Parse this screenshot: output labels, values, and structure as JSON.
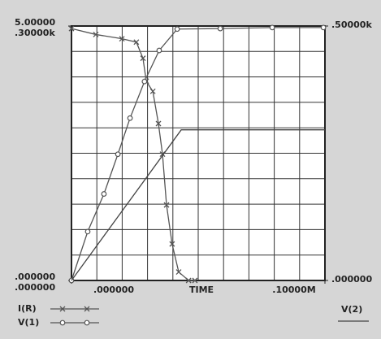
{
  "chart_data": {
    "type": "line",
    "xlabel": "TIME",
    "xlim": [
      0,
      0.1
    ],
    "xticks": [
      {
        "value": 0,
        "label": ".000000"
      },
      {
        "value": 0.1,
        "label": ".10000M"
      }
    ],
    "ylim": [
      0,
      5
    ],
    "yticks": [
      {
        "value": 0,
        "label": ".000000"
      },
      {
        "value": 5,
        "label": "5.00000"
      }
    ],
    "y3lim": [
      0,
      300
    ],
    "y3ticks": [
      {
        "value": 0,
        "label": ".000000"
      },
      {
        "value": 300,
        "label": ".30000k"
      }
    ],
    "y2lim": [
      0,
      500
    ],
    "y2ticks": [
      {
        "value": 0,
        "label": ".000000"
      },
      {
        "value": 500,
        "label": ".50000k"
      }
    ],
    "series": [
      {
        "name": "I(R)",
        "color": "#555555",
        "marker": "x",
        "axis": "y3",
        "x": [
          0,
          0.0096,
          0.0199,
          0.0256,
          0.0282,
          0.0295,
          0.0321,
          0.0343,
          0.0359,
          0.0375,
          0.0397,
          0.0423,
          0.0462,
          0.0487
        ],
        "values": [
          297,
          290,
          285,
          281,
          262,
          235,
          223,
          185,
          149,
          89,
          43,
          10,
          0,
          0
        ]
      },
      {
        "name": "V(1)",
        "color": "#555555",
        "marker": "o",
        "axis": "y",
        "x": [
          0,
          0.0064,
          0.0128,
          0.0183,
          0.0231,
          0.0288,
          0.0346,
          0.0417,
          0.0587,
          0.0792,
          0.0994
        ],
        "values": [
          0,
          0.96,
          1.7,
          2.48,
          3.19,
          3.91,
          4.52,
          4.94,
          4.95,
          4.97,
          4.97
        ]
      },
      {
        "name": "V(2)",
        "color": "#444444",
        "marker": "none",
        "axis": "y2",
        "x": [
          0,
          0.0433,
          0.1
        ],
        "values": [
          0,
          296,
          296
        ]
      }
    ]
  }
}
